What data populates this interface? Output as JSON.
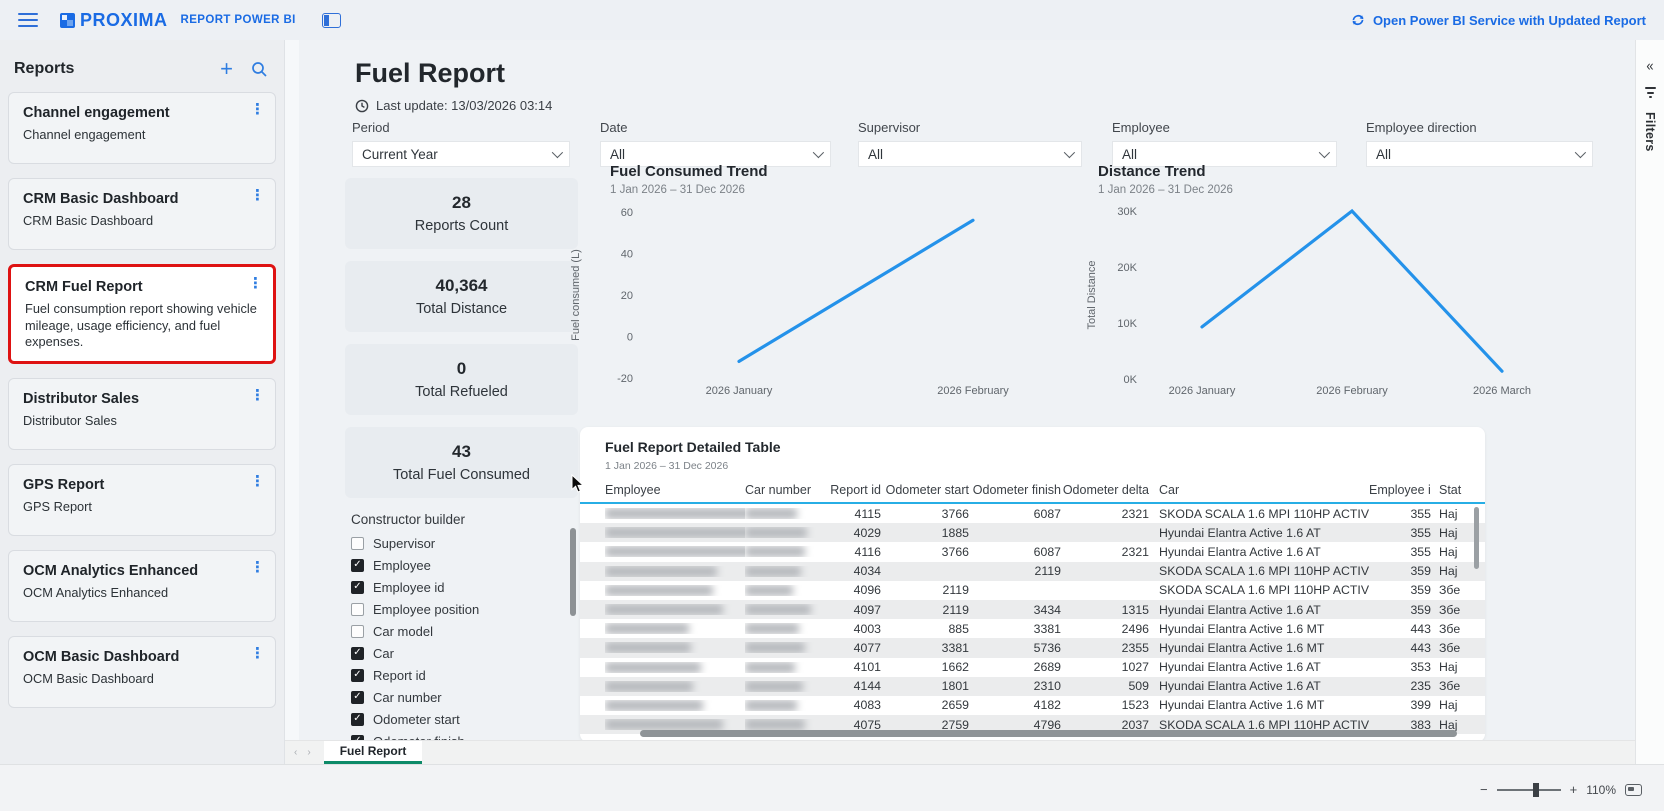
{
  "topbar": {
    "brand": "PROXIMA",
    "app_label": "REPORT POWER BI",
    "open_link": "Open Power BI Service with Updated Report"
  },
  "sidebar": {
    "title": "Reports",
    "reports": [
      {
        "title": "Channel engagement",
        "description": "Channel engagement",
        "highlighted": false
      },
      {
        "title": "CRM Basic Dashboard",
        "description": "CRM Basic Dashboard",
        "highlighted": false
      },
      {
        "title": "CRM Fuel Report",
        "description": "Fuel consumption report showing vehicle mileage, usage efficiency, and fuel expenses.",
        "highlighted": true
      },
      {
        "title": "Distributor Sales",
        "description": "Distributor Sales",
        "highlighted": false
      },
      {
        "title": "GPS Report",
        "description": "GPS Report",
        "highlighted": false
      },
      {
        "title": "OCM Analytics Enhanced",
        "description": "OCM Analytics Enhanced",
        "highlighted": false
      },
      {
        "title": "OCM Basic Dashboard",
        "description": "OCM Basic Dashboard",
        "highlighted": false
      }
    ]
  },
  "report": {
    "title": "Fuel Report",
    "last_update": "Last update: 13/03/2026 03:14",
    "filters": [
      {
        "label": "Period",
        "value": "Current Year"
      },
      {
        "label": "Date",
        "value": "All"
      },
      {
        "label": "Supervisor",
        "value": "All"
      },
      {
        "label": "Employee",
        "value": "All"
      },
      {
        "label": "Employee direction",
        "value": "All"
      }
    ],
    "kpis": [
      {
        "value": "28",
        "label": "Reports Count"
      },
      {
        "value": "40,364",
        "label": "Total Distance"
      },
      {
        "value": "0",
        "label": "Total Refueled"
      },
      {
        "value": "43",
        "label": "Total Fuel Consumed"
      }
    ],
    "constructor": {
      "title": "Constructor builder",
      "fields": [
        {
          "label": "Supervisor",
          "checked": false
        },
        {
          "label": "Employee",
          "checked": true
        },
        {
          "label": "Employee id",
          "checked": true
        },
        {
          "label": "Employee position",
          "checked": false
        },
        {
          "label": "Car model",
          "checked": false
        },
        {
          "label": "Car",
          "checked": true
        },
        {
          "label": "Report id",
          "checked": true
        },
        {
          "label": "Car number",
          "checked": true
        },
        {
          "label": "Odometer start",
          "checked": true
        },
        {
          "label": "Odometer finish",
          "checked": true
        }
      ]
    },
    "active_tab": "Fuel Report",
    "zoom_level": "110%",
    "filters_panel_label": "Filters"
  },
  "chart_data": [
    {
      "type": "line",
      "title": "Fuel Consumed Trend",
      "subtitle": "1 Jan 2026 – 31 Dec 2026",
      "x": [
        "2026 January",
        "2026 February"
      ],
      "series": [
        {
          "name": "Fuel consumed (L)",
          "values": [
            -12,
            56
          ]
        }
      ],
      "ylabel": "Fuel consumed (L)",
      "xlabel": "",
      "ylim": [
        -20,
        60
      ],
      "ytick_values": [
        60,
        40,
        20,
        0,
        -20
      ],
      "ytick_labels": [
        "60",
        "40",
        "20",
        "0",
        "-20"
      ],
      "grid": false,
      "legend": "none",
      "line_color": "#2492ea"
    },
    {
      "type": "line",
      "title": "Distance Trend",
      "subtitle": "1 Jan 2026 – 31 Dec 2026",
      "x": [
        "2026 January",
        "2026 February",
        "2026 March"
      ],
      "series": [
        {
          "name": "Total Distance",
          "values": [
            9300,
            30000,
            1400
          ]
        }
      ],
      "ylabel": "Total Distance",
      "xlabel": "",
      "ylim": [
        0,
        30000
      ],
      "ytick_values": [
        30000,
        20000,
        10000,
        0
      ],
      "ytick_labels": [
        "30K",
        "20K",
        "10K",
        "0K"
      ],
      "grid": false,
      "legend": "none",
      "line_color": "#2492ea"
    }
  ],
  "table": {
    "title": "Fuel Report Detailed Table",
    "subtitle": "1 Jan 2026 – 31 Dec 2026",
    "columns": [
      "Employee",
      "Car number",
      "Report id",
      "Odometer start",
      "Odometer finish",
      "Odometer delta",
      "Car",
      "Employee id",
      "Stat"
    ],
    "blurred_columns": [
      "Employee",
      "Car number"
    ],
    "rows": [
      {
        "report_id": "4115",
        "odometer_start": "3766",
        "odometer_finish": "6087",
        "odometer_delta": "2321",
        "car": "SKODA SCALA 1.6 MPI 110HP ACTIVE",
        "employee_id": "355",
        "status": "Haj"
      },
      {
        "report_id": "4029",
        "odometer_start": "1885",
        "odometer_finish": "",
        "odometer_delta": "",
        "car": "Hyundai Elantra Active 1.6 AT",
        "employee_id": "355",
        "status": "Haj"
      },
      {
        "report_id": "4116",
        "odometer_start": "3766",
        "odometer_finish": "6087",
        "odometer_delta": "2321",
        "car": "Hyundai Elantra Active 1.6 AT",
        "employee_id": "355",
        "status": "Haj"
      },
      {
        "report_id": "4034",
        "odometer_start": "",
        "odometer_finish": "2119",
        "odometer_delta": "",
        "car": "SKODA SCALA 1.6 MPI 110HP ACTIVE",
        "employee_id": "359",
        "status": "Haj"
      },
      {
        "report_id": "4096",
        "odometer_start": "2119",
        "odometer_finish": "",
        "odometer_delta": "",
        "car": "SKODA SCALA 1.6 MPI 110HP ACTIVE",
        "employee_id": "359",
        "status": "Збе"
      },
      {
        "report_id": "4097",
        "odometer_start": "2119",
        "odometer_finish": "3434",
        "odometer_delta": "1315",
        "car": "Hyundai Elantra Active 1.6 AT",
        "employee_id": "359",
        "status": "Збе"
      },
      {
        "report_id": "4003",
        "odometer_start": "885",
        "odometer_finish": "3381",
        "odometer_delta": "2496",
        "car": "Hyundai Elantra Active 1.6 MT",
        "employee_id": "443",
        "status": "Збе"
      },
      {
        "report_id": "4077",
        "odometer_start": "3381",
        "odometer_finish": "5736",
        "odometer_delta": "2355",
        "car": "Hyundai Elantra Active 1.6 MT",
        "employee_id": "443",
        "status": "Збе"
      },
      {
        "report_id": "4101",
        "odometer_start": "1662",
        "odometer_finish": "2689",
        "odometer_delta": "1027",
        "car": "Hyundai Elantra Active 1.6 AT",
        "employee_id": "353",
        "status": "Haj"
      },
      {
        "report_id": "4144",
        "odometer_start": "1801",
        "odometer_finish": "2310",
        "odometer_delta": "509",
        "car": "Hyundai Elantra Active 1.6 AT",
        "employee_id": "235",
        "status": "Збе"
      },
      {
        "report_id": "4083",
        "odometer_start": "2659",
        "odometer_finish": "4182",
        "odometer_delta": "1523",
        "car": "Hyundai Elantra Active 1.6 MT",
        "employee_id": "399",
        "status": "Haj"
      },
      {
        "report_id": "4075",
        "odometer_start": "2759",
        "odometer_finish": "4796",
        "odometer_delta": "2037",
        "car": "SKODA SCALA 1.6 MPI 110HP ACTIVE",
        "employee_id": "383",
        "status": "Haj"
      }
    ]
  },
  "colors": {
    "accent_blue": "#1a6be4",
    "chart_line": "#2492ea",
    "highlight_red": "#de1212",
    "tab_green": "#0d8a68",
    "table_header_line": "#27aee5"
  }
}
